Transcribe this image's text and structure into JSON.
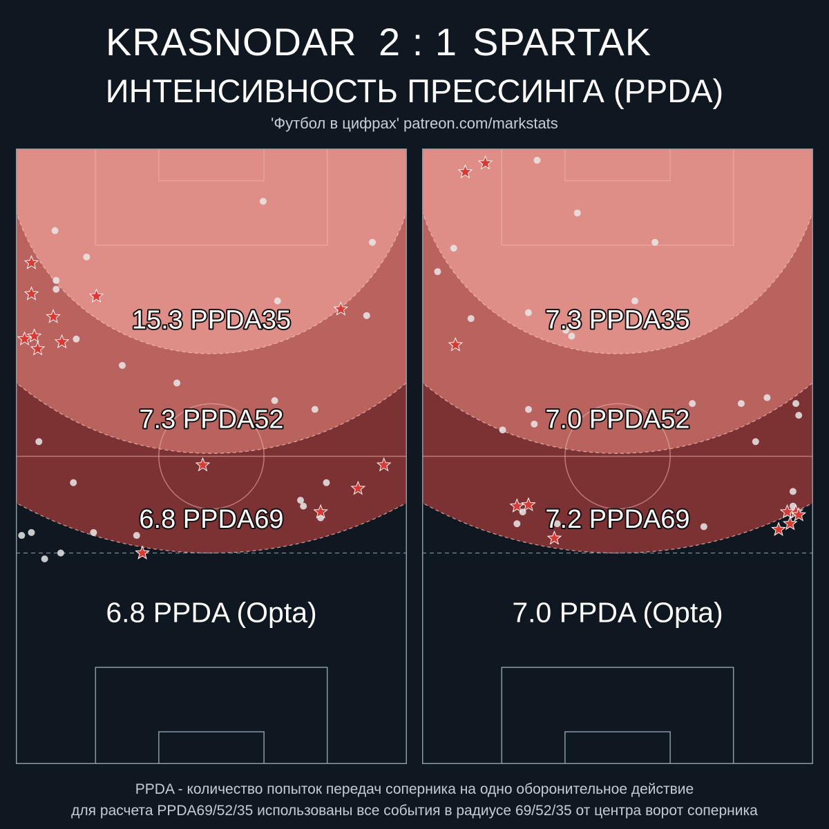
{
  "header": {
    "home_team": "KRASNODAR",
    "score": "2 : 1",
    "away_team": "SPARTAK",
    "subtitle": "ИНТЕНСИВНОСТЬ ПРЕССИНГА (PPDA)",
    "source": "'Футбол в цифрах' patreon.com/markstats"
  },
  "footer": {
    "line1": "PPDA - количество попыток передач соперника на одно оборонительное действие",
    "line2": "для расчета PPDA69/52/35 использованы все события в радиусе 69/52/35 от центра ворот соперника"
  },
  "colors": {
    "background": "#0f1820",
    "zone35": "#df8e87",
    "zone52": "#ba625e",
    "zone69": "#7c3133",
    "dot": "#e9e9e9",
    "star": "#d93a33"
  },
  "chart_data": [
    {
      "type": "scatter",
      "team": "KRASNODAR",
      "zone_labels": [
        "15.3 PPDA35",
        "7.3 PPDA52",
        "6.8 PPDA69"
      ],
      "opta_label": "6.8 PPDA (Opta)",
      "x_range": [
        0,
        68
      ],
      "y_range": [
        0,
        105
      ],
      "dots": [
        [
          43,
          96
        ],
        [
          6.8,
          91
        ],
        [
          62,
          89
        ],
        [
          12.3,
          86.5
        ],
        [
          7,
          82.5
        ],
        [
          7,
          81
        ],
        [
          45.5,
          79
        ],
        [
          61,
          76.5
        ],
        [
          10.5,
          72.5
        ],
        [
          18.5,
          68
        ],
        [
          28,
          65
        ],
        [
          45,
          62
        ],
        [
          52,
          60.5
        ],
        [
          4,
          55
        ],
        [
          10,
          48
        ],
        [
          54,
          48
        ],
        [
          49.5,
          45
        ],
        [
          50,
          44
        ],
        [
          2.7,
          39.5
        ],
        [
          53,
          42
        ],
        [
          13.5,
          39.5
        ],
        [
          21,
          39
        ],
        [
          7.8,
          36
        ],
        [
          1,
          39
        ],
        [
          5,
          35
        ]
      ],
      "stars": [
        [
          2.7,
          85.5
        ],
        [
          2.7,
          80.2
        ],
        [
          14,
          79.8
        ],
        [
          56.5,
          77.6
        ],
        [
          6.5,
          76.3
        ],
        [
          3.2,
          73
        ],
        [
          1.5,
          72.5
        ],
        [
          8,
          72
        ],
        [
          3.8,
          70.8
        ],
        [
          32.5,
          51
        ],
        [
          64,
          51
        ],
        [
          59.5,
          47
        ],
        [
          53,
          43
        ],
        [
          22,
          36
        ]
      ]
    },
    {
      "type": "scatter",
      "team": "SPARTAK",
      "zone_labels": [
        "7.3 PPDA35",
        "7.0 PPDA52",
        "7.2 PPDA69"
      ],
      "opta_label": "7.0 PPDA (Opta)",
      "x_range": [
        0,
        68
      ],
      "y_range": [
        0,
        105
      ],
      "dots": [
        [
          20,
          103
        ],
        [
          27,
          94
        ],
        [
          40.5,
          89
        ],
        [
          5.5,
          88
        ],
        [
          2.7,
          84
        ],
        [
          37,
          79
        ],
        [
          18.5,
          77
        ],
        [
          8.5,
          76
        ],
        [
          25,
          74
        ],
        [
          26,
          73
        ],
        [
          47,
          61.5
        ],
        [
          55.5,
          61.5
        ],
        [
          60,
          62.5
        ],
        [
          65,
          61.5
        ],
        [
          18.5,
          60.5
        ],
        [
          65.5,
          59.5
        ],
        [
          19.5,
          58
        ],
        [
          14,
          57
        ],
        [
          58,
          55
        ],
        [
          64.5,
          46.5
        ],
        [
          64.5,
          44
        ],
        [
          16.5,
          41
        ],
        [
          23.5,
          41
        ],
        [
          49,
          40.5
        ],
        [
          17.5,
          43
        ]
      ],
      "stars": [
        [
          11,
          102.5
        ],
        [
          7.5,
          101
        ],
        [
          5.8,
          71.5
        ],
        [
          18.5,
          44.2
        ],
        [
          16.5,
          44
        ],
        [
          65,
          43
        ],
        [
          63.5,
          43
        ],
        [
          65.5,
          42.5
        ],
        [
          64,
          41
        ],
        [
          62,
          40
        ],
        [
          23,
          38.5
        ]
      ]
    }
  ]
}
